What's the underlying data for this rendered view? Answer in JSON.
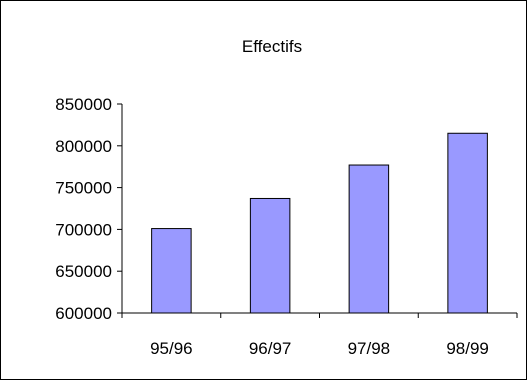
{
  "chart_data": {
    "type": "bar",
    "title": "Effectifs",
    "xlabel": "",
    "ylabel": "",
    "categories": [
      "95/96",
      "96/97",
      "97/98",
      "98/99"
    ],
    "values": [
      701000,
      737000,
      777000,
      815000
    ],
    "ylim": [
      600000,
      850000
    ],
    "yticks": [
      600000,
      650000,
      700000,
      750000,
      800000,
      850000
    ],
    "ytick_labels": [
      "600000",
      "650000",
      "700000",
      "750000",
      "800000",
      "850000"
    ],
    "grid": false,
    "legend": "none",
    "bar_color": "#9999ff",
    "bar_edge_color": "#000000"
  }
}
